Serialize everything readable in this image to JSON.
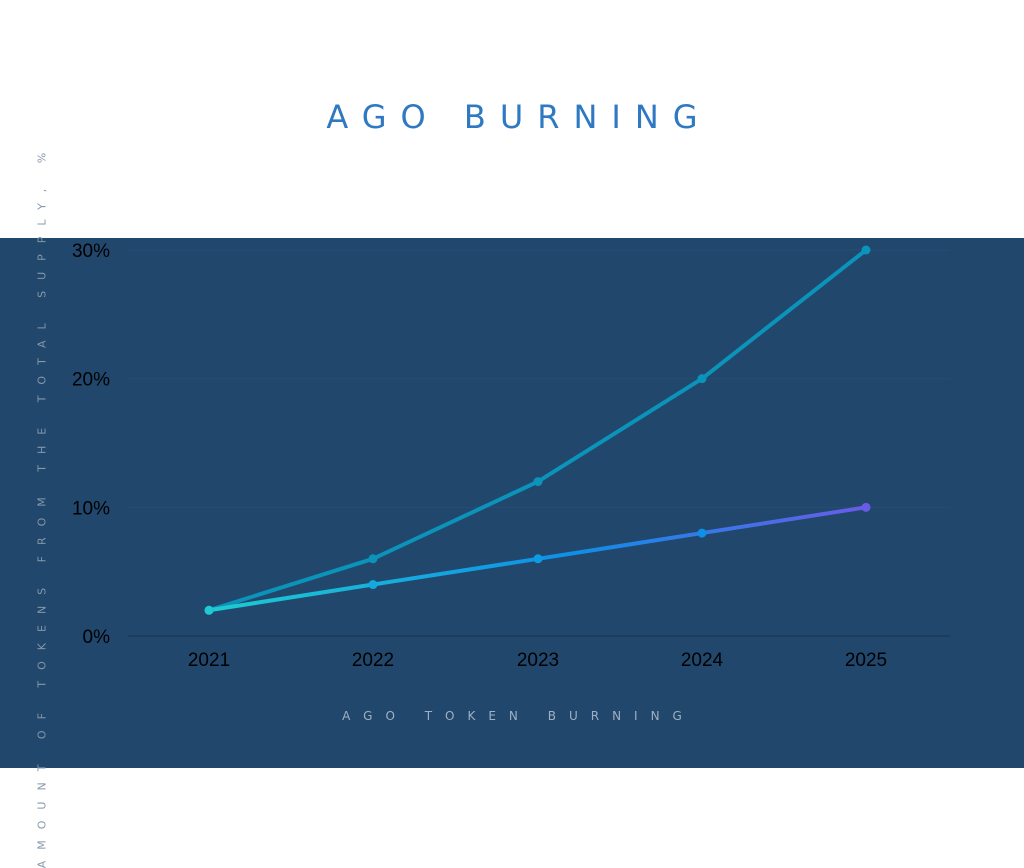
{
  "title": "AGO BURNING",
  "colors": {
    "header_bg": "#ffffff",
    "panel_bg": "#21476c",
    "title": "#2f79c2",
    "series_upper": "#0b93b9",
    "series_lower_start": "#1fcbd0",
    "series_lower_mid": "#0e8fe8",
    "series_lower_end": "#6a5be6",
    "tick_labels": "#000000"
  },
  "chart_data": {
    "type": "line",
    "x": [
      "2021",
      "2022",
      "2023",
      "2024",
      "2025"
    ],
    "series": [
      {
        "values": [
          2,
          6,
          12,
          20,
          30
        ]
      },
      {
        "values": [
          2,
          4,
          6,
          8,
          10
        ]
      }
    ],
    "yticks": [
      "0%",
      "10%",
      "20%",
      "30%"
    ],
    "ytick_values": [
      0,
      10,
      20,
      30
    ],
    "ylim": [
      0,
      30
    ],
    "ylabel": "AMOUNT OF TOKENS FROM THE TOTAL SUPPLY, %",
    "xlabel": "AGO TOKEN BURNING",
    "grid": "horizontal",
    "legend": "none"
  }
}
